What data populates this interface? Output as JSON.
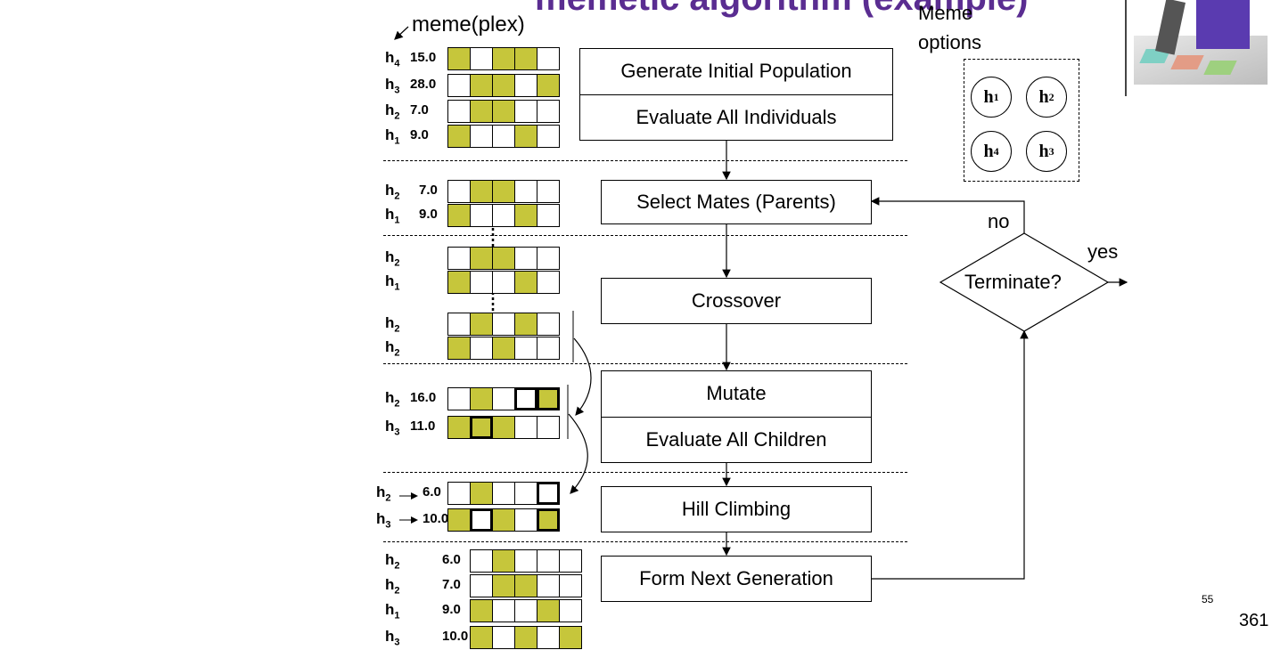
{
  "header_title_fragment": "memetic algorithm (example)",
  "meme_arrow_label": "meme(plex)",
  "meme_options": {
    "title_line1": "Meme",
    "title_line2": "options",
    "items": [
      {
        "h": "h",
        "sub": "1"
      },
      {
        "h": "h",
        "sub": "2"
      },
      {
        "h": "h",
        "sub": "4"
      },
      {
        "h": "h",
        "sub": "3"
      }
    ]
  },
  "process_steps": {
    "generate": "Generate Initial Population",
    "evaluate_all": "Evaluate All Individuals",
    "select_mates": "Select Mates (Parents)",
    "crossover": "Crossover",
    "mutate": "Mutate",
    "evaluate_children": "Evaluate All Children",
    "hill_climbing": "Hill Climbing",
    "form_next": "Form Next Generation"
  },
  "decision": {
    "label": "Terminate?",
    "no_label": "no",
    "yes_label": "yes"
  },
  "stage_initial": [
    {
      "h": "h",
      "sub": "4",
      "score": "15.0",
      "genes": [
        1,
        0,
        1,
        1,
        0
      ]
    },
    {
      "h": "h",
      "sub": "3",
      "score": "28.0",
      "genes": [
        0,
        1,
        1,
        0,
        1
      ]
    },
    {
      "h": "h",
      "sub": "2",
      "score": "7.0",
      "genes": [
        0,
        1,
        1,
        0,
        0
      ]
    },
    {
      "h": "h",
      "sub": "1",
      "score": "9.0",
      "genes": [
        1,
        0,
        0,
        1,
        0
      ]
    }
  ],
  "stage_parents": [
    {
      "h": "h",
      "sub": "2",
      "score": "7.0",
      "genes": [
        0,
        1,
        1,
        0,
        0
      ]
    },
    {
      "h": "h",
      "sub": "1",
      "score": "9.0",
      "genes": [
        1,
        0,
        0,
        1,
        0
      ]
    }
  ],
  "stage_crossover_before": [
    {
      "h": "h",
      "sub": "2",
      "genes": [
        0,
        1,
        1,
        0,
        0
      ]
    },
    {
      "h": "h",
      "sub": "1",
      "genes": [
        1,
        0,
        0,
        1,
        0
      ]
    }
  ],
  "stage_crossover_after": [
    {
      "h": "h",
      "sub": "2",
      "genes": [
        0,
        1,
        0,
        1,
        0
      ]
    },
    {
      "h": "h",
      "sub": "2",
      "genes": [
        1,
        0,
        1,
        0,
        0
      ]
    }
  ],
  "stage_mutated": [
    {
      "h": "h",
      "sub": "2",
      "score": "16.0",
      "genes": [
        0,
        1,
        0,
        0,
        1
      ],
      "bold": [
        0,
        0,
        0,
        1,
        1
      ]
    },
    {
      "h": "h",
      "sub": "3",
      "score": "11.0",
      "genes": [
        1,
        1,
        1,
        0,
        0
      ],
      "bold": [
        0,
        1,
        0,
        0,
        0
      ]
    }
  ],
  "stage_hill": [
    {
      "h": "h",
      "sub": "2",
      "score": "6.0",
      "genes": [
        0,
        1,
        0,
        0,
        0
      ],
      "bold": [
        0,
        0,
        0,
        0,
        1
      ]
    },
    {
      "h": "h",
      "sub": "3",
      "score": "10.0",
      "genes": [
        1,
        0,
        1,
        0,
        1
      ],
      "bold": [
        0,
        1,
        0,
        0,
        1
      ]
    }
  ],
  "stage_next": [
    {
      "h": "h",
      "sub": "2",
      "score": "6.0",
      "genes": [
        0,
        1,
        0,
        0,
        0
      ]
    },
    {
      "h": "h",
      "sub": "2",
      "score": "7.0",
      "genes": [
        0,
        1,
        1,
        0,
        0
      ]
    },
    {
      "h": "h",
      "sub": "1",
      "score": "9.0",
      "genes": [
        1,
        0,
        0,
        1,
        0
      ]
    },
    {
      "h": "h",
      "sub": "3",
      "score": "10.0",
      "genes": [
        1,
        0,
        1,
        0,
        1
      ]
    }
  ],
  "footer": {
    "slide_number": "55",
    "page_number": "361"
  },
  "colors": {
    "gene_on": "#c6c63b",
    "title_purple": "#5a2d91"
  }
}
